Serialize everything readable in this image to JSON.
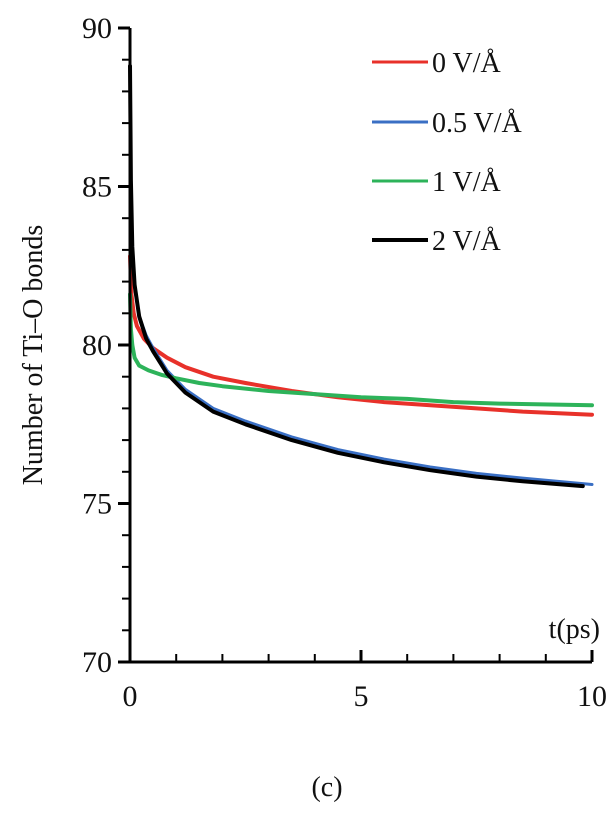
{
  "chart_data": {
    "type": "line",
    "caption": "(c)",
    "xlabel": "t(ps)",
    "ylabel": "Number of Ti–O bonds",
    "xlim": [
      0,
      10
    ],
    "ylim": [
      70,
      90
    ],
    "x_ticks": [
      0,
      5,
      10
    ],
    "y_ticks": [
      70,
      75,
      80,
      85,
      90
    ],
    "x_minor_step": 1,
    "y_minor_step": 1,
    "legend_position": "top-right",
    "series": [
      {
        "name": "0 V/Å",
        "color": "#e8312a",
        "x": [
          0,
          0.03,
          0.08,
          0.15,
          0.3,
          0.5,
          0.8,
          1.2,
          1.8,
          2.5,
          3.5,
          4.5,
          5.5,
          6.5,
          7.5,
          8.5,
          10
        ],
        "y": [
          82.8,
          81.6,
          81.0,
          80.6,
          80.2,
          79.9,
          79.6,
          79.3,
          79.0,
          78.8,
          78.55,
          78.35,
          78.2,
          78.1,
          78.0,
          77.9,
          77.8
        ]
      },
      {
        "name": "0.5 V/Å",
        "color": "#3a6fc4",
        "x": [
          0,
          0.02,
          0.05,
          0.1,
          0.2,
          0.35,
          0.5,
          0.8,
          1.2,
          1.8,
          2.5,
          3.5,
          4.5,
          5.5,
          6.5,
          7.5,
          8.5,
          10
        ],
        "y": [
          88.5,
          85.0,
          83.0,
          81.8,
          80.9,
          80.3,
          79.9,
          79.2,
          78.6,
          78.0,
          77.6,
          77.1,
          76.7,
          76.4,
          76.15,
          75.95,
          75.8,
          75.6
        ]
      },
      {
        "name": "1 V/Å",
        "color": "#2db35a",
        "x": [
          0,
          0.02,
          0.05,
          0.1,
          0.2,
          0.4,
          0.7,
          1.0,
          1.5,
          2.0,
          3.0,
          4.0,
          5.0,
          6.0,
          7.0,
          8.0,
          10
        ],
        "y": [
          81.6,
          80.5,
          80.0,
          79.6,
          79.35,
          79.2,
          79.05,
          78.95,
          78.8,
          78.7,
          78.55,
          78.45,
          78.35,
          78.3,
          78.2,
          78.15,
          78.1
        ]
      },
      {
        "name": "2 V/Å",
        "color": "#000000",
        "x": [
          0,
          0.02,
          0.05,
          0.1,
          0.2,
          0.35,
          0.5,
          0.8,
          1.2,
          1.8,
          2.5,
          3.5,
          4.5,
          5.5,
          6.5,
          7.5,
          8.5,
          9.8
        ],
        "y": [
          88.8,
          85.2,
          83.1,
          81.9,
          80.9,
          80.2,
          79.8,
          79.1,
          78.5,
          77.9,
          77.5,
          77.0,
          76.6,
          76.3,
          76.05,
          75.85,
          75.7,
          75.55
        ]
      }
    ]
  }
}
